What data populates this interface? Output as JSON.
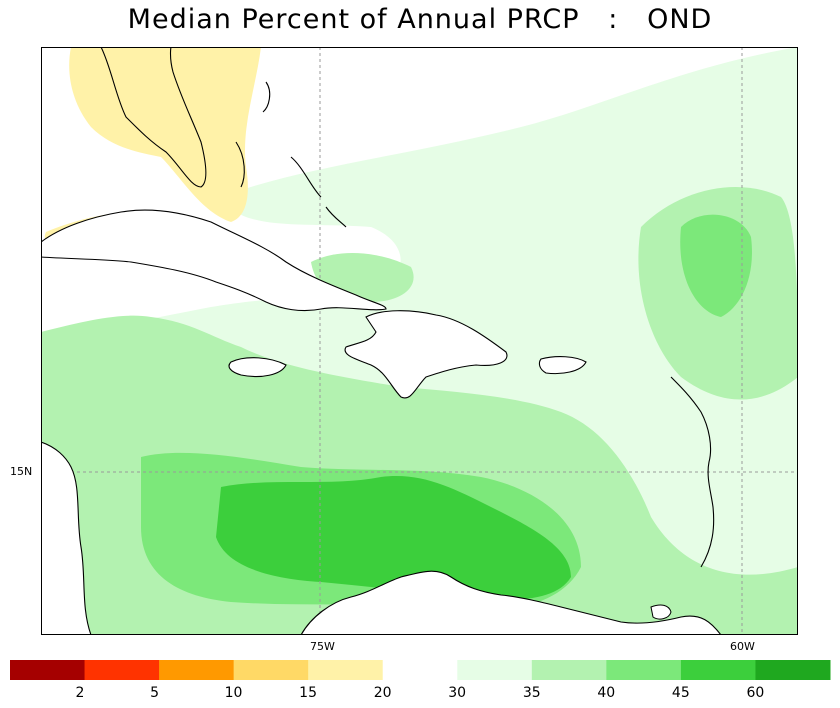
{
  "title": "Median Percent of Annual PRCP   :   OND",
  "axes": {
    "lon_labels": [
      "75W",
      "60W"
    ],
    "lat_labels": [
      "15N"
    ]
  },
  "legend": {
    "colors": [
      "#a50000",
      "#ff3300",
      "#ff9900",
      "#ffd966",
      "#fff2a8",
      "#ffffff",
      "#e6fde6",
      "#b3f2b0",
      "#7ce87a",
      "#3ccf3c",
      "#1fa81f"
    ],
    "labels": [
      "2",
      "5",
      "10",
      "15",
      "20",
      "30",
      "35",
      "40",
      "45",
      "60"
    ]
  },
  "palette": {
    "yellow_20": "#fff2a8",
    "green_35": "#e6fde6",
    "green_40": "#b3f2b0",
    "green_45": "#7ce87a",
    "green_60": "#3ccf3c",
    "land_outline": "#000000",
    "border": "#999999"
  }
}
